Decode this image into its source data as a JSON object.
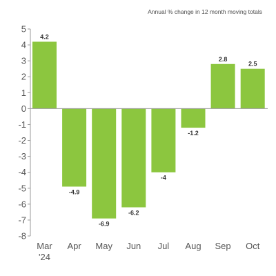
{
  "chart_data": {
    "type": "bar",
    "subtitle": "Annual % change in 12 month moving totals",
    "categories": [
      "Mar",
      "Apr",
      "May",
      "Jun",
      "Jul",
      "Aug",
      "Sep",
      "Oct"
    ],
    "category_sublabels": [
      "'24",
      "",
      "",
      "",
      "",
      "",
      "",
      ""
    ],
    "values": [
      4.2,
      -4.9,
      -6.9,
      -6.2,
      -4,
      -1.2,
      2.8,
      2.5
    ],
    "data_labels": [
      "4.2",
      "-4.9",
      "-6.9",
      "-6.2",
      "-4",
      "-1.2",
      "2.8",
      "2.5"
    ],
    "yticks": [
      "5",
      "4",
      "3",
      "2",
      "1",
      "0",
      "-1",
      "-2",
      "-3",
      "-4",
      "-5",
      "-6",
      "-7",
      "-8"
    ],
    "ylim": [
      -8,
      5
    ],
    "bar_color": "#8cc63f",
    "grid": false,
    "legend": "none"
  }
}
